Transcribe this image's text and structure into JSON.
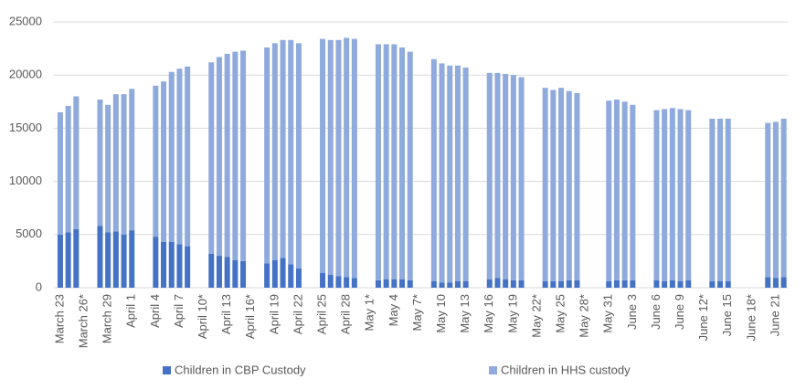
{
  "chart_data": {
    "type": "stacked_bar",
    "categories": [
      "March 23",
      null,
      null,
      "March 26*",
      null,
      null,
      "March 29",
      null,
      null,
      "April 1",
      null,
      null,
      "April 4",
      null,
      null,
      "April 7",
      null,
      null,
      "April 10*",
      null,
      null,
      "April 13",
      null,
      null,
      "April 16*",
      null,
      null,
      "April 19",
      null,
      null,
      "April 22",
      null,
      null,
      "April 25",
      null,
      null,
      "April 28",
      null,
      null,
      "May 1*",
      null,
      null,
      "May 4",
      null,
      null,
      "May 7*",
      null,
      null,
      "May 10",
      null,
      null,
      "May 13",
      null,
      null,
      "May 16",
      null,
      null,
      "May 19",
      null,
      null,
      "May 22*",
      null,
      null,
      "May 25",
      null,
      null,
      "May 28*",
      null,
      null,
      "May 31",
      null,
      null,
      "June 3",
      null,
      null,
      "June 6",
      null,
      null,
      "June 9",
      null,
      null,
      "June 12*",
      null,
      null,
      "June 15",
      null,
      null,
      "June 18*",
      null,
      null,
      "June 21",
      null
    ],
    "series": [
      {
        "name": "Children in CBP Custody",
        "color": "#4472c4",
        "values": [
          5000,
          5200,
          5500,
          null,
          null,
          5800,
          5200,
          5300,
          5000,
          5400,
          null,
          null,
          4800,
          4300,
          4300,
          4100,
          3900,
          null,
          null,
          3200,
          3000,
          2900,
          2600,
          2500,
          null,
          null,
          2300,
          2600,
          2800,
          2200,
          1800,
          null,
          null,
          1400,
          1200,
          1100,
          1000,
          900,
          null,
          null,
          700,
          800,
          800,
          800,
          700,
          null,
          null,
          600,
          500,
          500,
          600,
          600,
          null,
          null,
          800,
          900,
          800,
          700,
          700,
          null,
          null,
          600,
          600,
          600,
          700,
          700,
          null,
          null,
          null,
          600,
          700,
          700,
          700,
          null,
          null,
          700,
          600,
          700,
          600,
          700,
          null,
          null,
          600,
          600,
          600,
          null,
          null,
          null,
          null,
          1000,
          900,
          1000
        ]
      },
      {
        "name": "Children in HHS custody",
        "color": "#8faadc",
        "values": [
          11500,
          11900,
          12500,
          null,
          null,
          11900,
          12000,
          12900,
          13200,
          13300,
          null,
          null,
          14200,
          15100,
          16000,
          16500,
          16900,
          null,
          null,
          18000,
          18700,
          19100,
          19600,
          19800,
          null,
          null,
          20300,
          20400,
          20500,
          21100,
          21200,
          null,
          null,
          22000,
          22100,
          22200,
          22500,
          22500,
          null,
          null,
          22200,
          22100,
          22100,
          21800,
          21500,
          null,
          null,
          20900,
          20600,
          20400,
          20300,
          20100,
          null,
          null,
          19400,
          19300,
          19300,
          19300,
          19100,
          null,
          null,
          18200,
          18000,
          18200,
          17800,
          17600,
          null,
          null,
          null,
          17000,
          17000,
          16800,
          16500,
          null,
          null,
          16000,
          16200,
          16200,
          16200,
          16000,
          null,
          null,
          15300,
          15300,
          15300,
          null,
          null,
          null,
          null,
          14500,
          14700,
          14900
        ]
      }
    ],
    "ylim": [
      0,
      25000
    ],
    "yticks": [
      0,
      5000,
      10000,
      15000,
      20000,
      25000
    ],
    "grid": true,
    "legend": "bottom"
  }
}
